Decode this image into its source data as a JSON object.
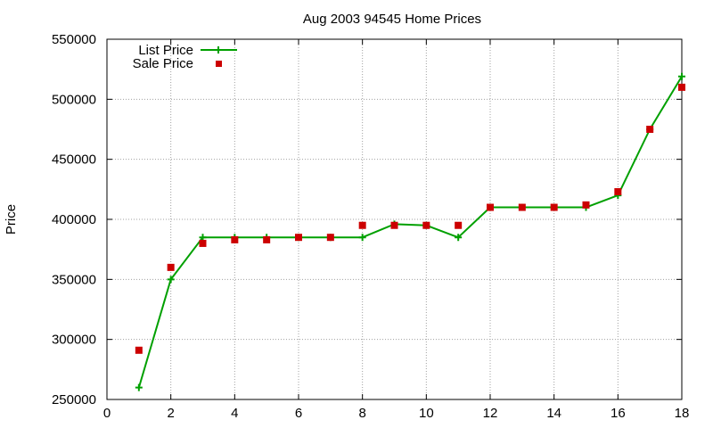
{
  "chart_data": {
    "type": "line",
    "title": "Aug 2003 94545 Home Prices",
    "xlabel": "",
    "ylabel": "Price",
    "xlim": [
      0,
      18
    ],
    "ylim": [
      250000,
      550000
    ],
    "x_ticks": [
      0,
      2,
      4,
      6,
      8,
      10,
      12,
      14,
      16,
      18
    ],
    "y_ticks": [
      250000,
      300000,
      350000,
      400000,
      450000,
      500000,
      550000
    ],
    "grid": true,
    "legend_position": "top-left",
    "series": [
      {
        "name": "List Price",
        "style": "line-with-plus-markers",
        "color": "#00a000",
        "x": [
          1,
          2,
          3,
          4,
          5,
          6,
          7,
          8,
          9,
          10,
          11,
          12,
          13,
          14,
          15,
          16,
          17,
          18
        ],
        "values": [
          259900,
          350000,
          385000,
          385000,
          385000,
          385000,
          385000,
          385000,
          396000,
          395000,
          385000,
          410000,
          410000,
          410000,
          410000,
          420000,
          475000,
          519000
        ]
      },
      {
        "name": "Sale Price",
        "style": "square-markers",
        "color": "#cc0000",
        "x": [
          1,
          2,
          3,
          4,
          5,
          6,
          7,
          8,
          9,
          10,
          11,
          12,
          13,
          14,
          15,
          16,
          17,
          18
        ],
        "values": [
          291000,
          360000,
          380000,
          383000,
          383000,
          385000,
          385000,
          395000,
          395000,
          395000,
          395000,
          410000,
          410000,
          410000,
          412000,
          423000,
          475000,
          510000
        ]
      }
    ]
  }
}
